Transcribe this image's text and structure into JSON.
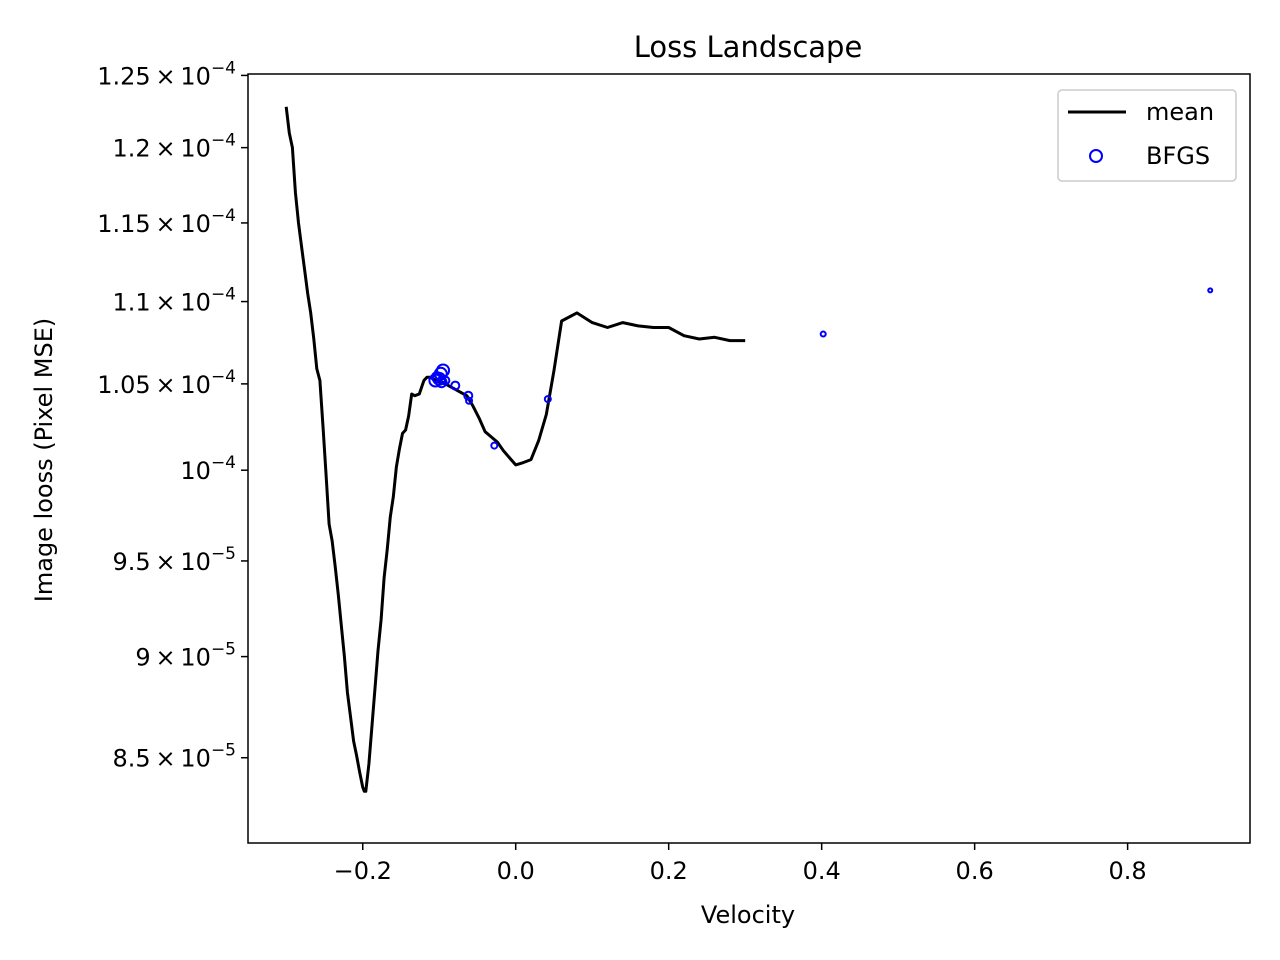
{
  "chart_data": {
    "type": "line",
    "title": "Loss Landscape",
    "xlabel": "Velocity",
    "ylabel": "Image looss (Pixel MSE)",
    "y_scale": "log",
    "xlim": [
      -0.35,
      0.96
    ],
    "ylim": [
      8.1e-05,
      0.0001251
    ],
    "grid": false,
    "legend_position": "top-right",
    "x_ticks": [
      {
        "value": -0.2,
        "label": "−0.2"
      },
      {
        "value": 0.0,
        "label": "0.0"
      },
      {
        "value": 0.2,
        "label": "0.2"
      },
      {
        "value": 0.4,
        "label": "0.4"
      },
      {
        "value": 0.6,
        "label": "0.6"
      },
      {
        "value": 0.8,
        "label": "0.8"
      }
    ],
    "y_ticks": [
      {
        "value": 8.5e-05,
        "mantissa": "8.5",
        "exponent": "−5"
      },
      {
        "value": 9e-05,
        "mantissa": "9",
        "exponent": "−5"
      },
      {
        "value": 9.5e-05,
        "mantissa": "9.5",
        "exponent": "−5"
      },
      {
        "value": 0.0001,
        "mantissa": "",
        "exponent": "−4"
      },
      {
        "value": 0.000105,
        "mantissa": "1.05",
        "exponent": "−4"
      },
      {
        "value": 0.00011,
        "mantissa": "1.1",
        "exponent": "−4"
      },
      {
        "value": 0.000115,
        "mantissa": "1.15",
        "exponent": "−4"
      },
      {
        "value": 0.00012,
        "mantissa": "1.2",
        "exponent": "−4"
      },
      {
        "value": 0.000125,
        "mantissa": "1.25",
        "exponent": "−4"
      }
    ],
    "series": [
      {
        "name": "mean",
        "kind": "line",
        "color": "#000000",
        "points": [
          [
            -0.3,
            0.0001228
          ],
          [
            -0.296,
            0.000121
          ],
          [
            -0.292,
            0.00012
          ],
          [
            -0.288,
            0.000117
          ],
          [
            -0.284,
            0.000115
          ],
          [
            -0.28,
            0.0001135
          ],
          [
            -0.276,
            0.000112
          ],
          [
            -0.272,
            0.0001105
          ],
          [
            -0.268,
            0.0001093
          ],
          [
            -0.264,
            0.0001077
          ],
          [
            -0.26,
            0.0001059
          ],
          [
            -0.256,
            0.0001052
          ],
          [
            -0.252,
            0.0001025
          ],
          [
            -0.248,
            9.98e-05
          ],
          [
            -0.244,
            9.7e-05
          ],
          [
            -0.24,
            9.61e-05
          ],
          [
            -0.236,
            9.47e-05
          ],
          [
            -0.232,
            9.32e-05
          ],
          [
            -0.228,
            9.16e-05
          ],
          [
            -0.224,
            9e-05
          ],
          [
            -0.22,
            8.82e-05
          ],
          [
            -0.216,
            8.7e-05
          ],
          [
            -0.212,
            8.58e-05
          ],
          [
            -0.208,
            8.51e-05
          ],
          [
            -0.204,
            8.43e-05
          ],
          [
            -0.2,
            8.36e-05
          ],
          [
            -0.198,
            8.34e-05
          ],
          [
            -0.196,
            8.34e-05
          ],
          [
            -0.192,
            8.47e-05
          ],
          [
            -0.188,
            8.65e-05
          ],
          [
            -0.184,
            8.84e-05
          ],
          [
            -0.18,
            9.03e-05
          ],
          [
            -0.176,
            9.19e-05
          ],
          [
            -0.172,
            9.41e-05
          ],
          [
            -0.168,
            9.56e-05
          ],
          [
            -0.164,
            9.74e-05
          ],
          [
            -0.16,
            9.85e-05
          ],
          [
            -0.156,
            0.0001002
          ],
          [
            -0.152,
            0.0001012
          ],
          [
            -0.148,
            0.0001021
          ],
          [
            -0.144,
            0.0001023
          ],
          [
            -0.14,
            0.0001031
          ],
          [
            -0.136,
            0.0001044
          ],
          [
            -0.132,
            0.0001043
          ],
          [
            -0.126,
            0.0001044
          ],
          [
            -0.12,
            0.0001052
          ],
          [
            -0.116,
            0.0001054
          ],
          [
            -0.112,
            0.0001054
          ],
          [
            -0.108,
            0.0001053
          ],
          [
            -0.104,
            0.0001052
          ],
          [
            -0.1,
            0.0001051
          ],
          [
            -0.096,
            0.0001051
          ],
          [
            -0.092,
            0.000105
          ],
          [
            -0.088,
            0.0001049
          ],
          [
            -0.084,
            0.0001048
          ],
          [
            -0.08,
            0.0001047
          ],
          [
            -0.072,
            0.0001045
          ],
          [
            -0.064,
            0.0001043
          ],
          [
            -0.056,
            0.0001037
          ],
          [
            -0.048,
            0.000103
          ],
          [
            -0.04,
            0.0001022
          ],
          [
            -0.032,
            0.0001019
          ],
          [
            -0.024,
            0.0001016
          ],
          [
            -0.016,
            0.0001011
          ],
          [
            -0.008,
            0.0001007
          ],
          [
            0.0,
            0.0001003
          ],
          [
            0.008,
            0.0001004
          ],
          [
            0.02,
            0.0001006
          ],
          [
            0.03,
            0.0001017
          ],
          [
            0.04,
            0.0001032
          ],
          [
            0.05,
            0.0001058
          ],
          [
            0.06,
            0.0001088
          ],
          [
            0.08,
            0.0001093
          ],
          [
            0.1,
            0.0001087
          ],
          [
            0.12,
            0.0001084
          ],
          [
            0.14,
            0.0001087
          ],
          [
            0.16,
            0.0001085
          ],
          [
            0.18,
            0.0001084
          ],
          [
            0.2,
            0.0001084
          ],
          [
            0.22,
            0.0001079
          ],
          [
            0.24,
            0.0001077
          ],
          [
            0.26,
            0.0001078
          ],
          [
            0.28,
            0.0001076
          ],
          [
            0.3,
            0.0001076
          ]
        ]
      },
      {
        "name": "BFGS",
        "kind": "scatter",
        "color": "#0000ff",
        "points": [
          [
            -0.105,
            0.0001052,
            6
          ],
          [
            -0.1,
            0.0001053,
            6
          ],
          [
            -0.098,
            0.0001056,
            6
          ],
          [
            -0.095,
            0.0001058,
            6
          ],
          [
            -0.103,
            0.0001054,
            5
          ],
          [
            -0.097,
            0.0001051,
            5
          ],
          [
            -0.092,
            0.0001052,
            4
          ],
          [
            -0.079,
            0.0001049,
            4
          ],
          [
            -0.062,
            0.0001043,
            4
          ],
          [
            -0.061,
            0.000104,
            3
          ],
          [
            -0.028,
            0.0001014,
            3
          ],
          [
            0.042,
            0.0001041,
            3
          ],
          [
            0.402,
            0.000108,
            2.5
          ],
          [
            0.908,
            0.0001107,
            2
          ]
        ]
      }
    ]
  }
}
